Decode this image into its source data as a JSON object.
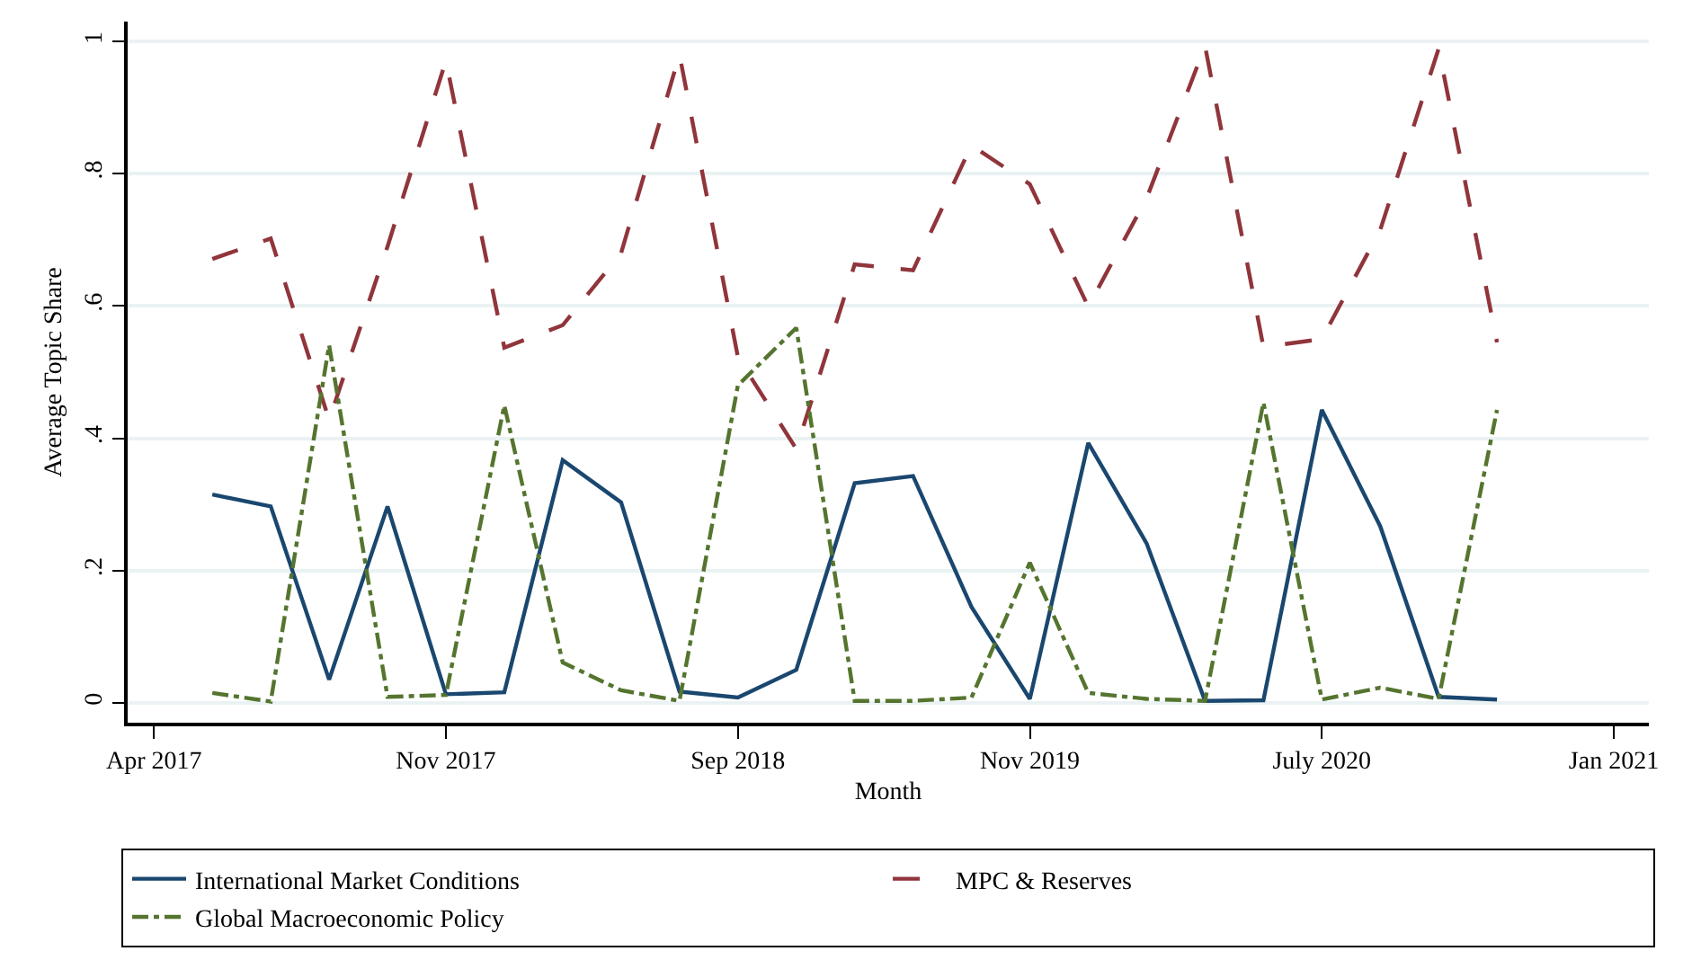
{
  "chart_data": {
    "type": "line",
    "xlabel": "Month",
    "ylabel": "Average Topic Share",
    "categories": [
      "Apr 2017",
      null,
      null,
      null,
      null,
      "Nov 2017",
      null,
      null,
      null,
      null,
      "Sep 2018",
      null,
      null,
      null,
      null,
      "Nov 2019",
      null,
      null,
      null,
      null,
      "July 2020",
      null,
      null,
      null,
      null,
      "Jan 2021"
    ],
    "series": [
      {
        "name": "International Market Conditions",
        "color": "#1a476f",
        "line_style": "solid",
        "values": [
          null,
          0.315,
          0.297,
          0.035,
          0.297,
          0.013,
          0.016,
          0.367,
          0.303,
          0.017,
          0.008,
          0.05,
          0.332,
          0.343,
          0.145,
          0.006,
          0.393,
          0.241,
          0.003,
          0.004,
          0.443,
          0.267,
          0.009,
          0.005,
          null,
          null
        ]
      },
      {
        "name": "MPC & Reserves",
        "color": "#90353b",
        "line_style": "dashed",
        "values": [
          null,
          0.671,
          0.702,
          0.428,
          0.69,
          0.971,
          0.537,
          0.571,
          0.68,
          0.98,
          0.523,
          0.384,
          0.663,
          0.654,
          0.843,
          0.784,
          0.599,
          0.763,
          0.993,
          0.538,
          0.55,
          0.715,
          0.989,
          0.545,
          null,
          null
        ]
      },
      {
        "name": "Global Macroeconomic Policy",
        "color": "#55752f",
        "line_style": "dotted",
        "values": [
          null,
          0.015,
          0.002,
          0.541,
          0.009,
          0.012,
          0.45,
          0.061,
          0.019,
          0.003,
          0.48,
          0.567,
          0.003,
          0.003,
          0.008,
          0.212,
          0.015,
          0.006,
          0.003,
          0.454,
          0.005,
          0.023,
          0.006,
          0.443,
          null,
          null
        ]
      }
    ],
    "ylim": [
      -0.03,
      1.03
    ],
    "yticks": [
      0,
      {
        "value": 0.2,
        "label": ".2"
      },
      {
        "value": 0.4,
        "label": ".4"
      },
      {
        "value": 0.6,
        "label": ".6"
      },
      {
        "value": 0.8,
        "label": ".8"
      },
      1
    ],
    "grid": "y",
    "legend": "bottom",
    "marker": "none"
  }
}
